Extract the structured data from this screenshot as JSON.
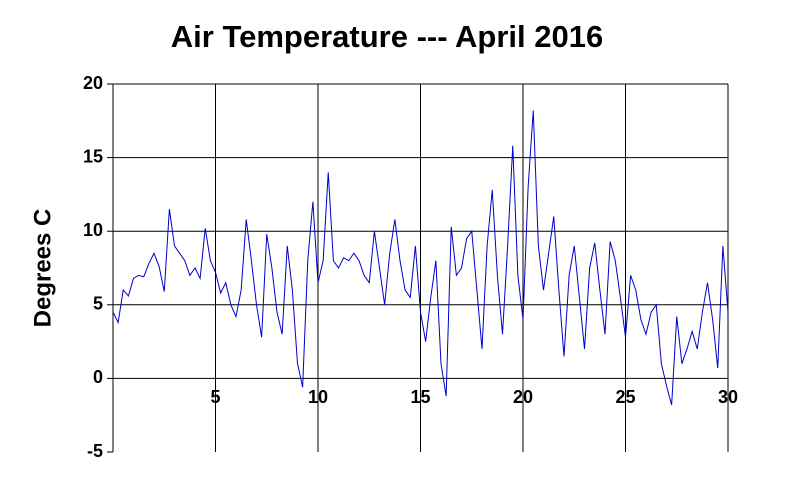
{
  "chart_data": {
    "type": "line",
    "title": "Air Temperature --- April 2016",
    "y_label": "Degrees C",
    "x": [
      0,
      0.25,
      0.5,
      0.75,
      1,
      1.25,
      1.5,
      1.75,
      2,
      2.25,
      2.5,
      2.75,
      3,
      3.25,
      3.5,
      3.75,
      4,
      4.25,
      4.5,
      4.75,
      5,
      5.25,
      5.5,
      5.75,
      6,
      6.25,
      6.5,
      6.75,
      7,
      7.25,
      7.5,
      7.75,
      8,
      8.25,
      8.5,
      8.75,
      9,
      9.25,
      9.5,
      9.75,
      10,
      10.25,
      10.5,
      10.75,
      11,
      11.25,
      11.5,
      11.75,
      12,
      12.25,
      12.5,
      12.75,
      13,
      13.25,
      13.5,
      13.75,
      14,
      14.25,
      14.5,
      14.75,
      15,
      15.25,
      15.5,
      15.75,
      16,
      16.25,
      16.5,
      16.75,
      17,
      17.25,
      17.5,
      17.75,
      18,
      18.25,
      18.5,
      18.75,
      19,
      19.25,
      19.5,
      19.75,
      20,
      20.25,
      20.5,
      20.75,
      21,
      21.25,
      21.5,
      21.75,
      22,
      22.25,
      22.5,
      22.75,
      23,
      23.25,
      23.5,
      23.75,
      24,
      24.25,
      24.5,
      24.75,
      25,
      25.25,
      25.5,
      25.75,
      26,
      26.25,
      26.5,
      26.75,
      27,
      27.25,
      27.5,
      27.75,
      28,
      28.25,
      28.5,
      28.75,
      29,
      29.25,
      29.5,
      29.75,
      30
    ],
    "series": [
      {
        "name": "Air Temperature",
        "color": "#0000cc",
        "values": [
          4.5,
          3.8,
          6.0,
          5.6,
          6.8,
          7.0,
          6.9,
          7.8,
          8.5,
          7.6,
          5.9,
          11.5,
          9.0,
          8.5,
          8.0,
          7.0,
          7.5,
          6.8,
          10.2,
          8.0,
          7.2,
          5.8,
          6.5,
          5.0,
          4.2,
          6.0,
          10.8,
          8.0,
          5.0,
          2.8,
          9.8,
          7.5,
          4.5,
          3.0,
          9.0,
          6.0,
          1.0,
          -0.6,
          8.0,
          12.0,
          6.5,
          8.0,
          14.0,
          8.0,
          7.5,
          8.2,
          8.0,
          8.5,
          8.0,
          7.0,
          6.5,
          10.0,
          7.5,
          5.0,
          8.5,
          10.8,
          8.0,
          6.0,
          5.5,
          9.0,
          4.5,
          2.5,
          5.5,
          8.0,
          1.0,
          -1.2,
          10.3,
          7.0,
          7.5,
          9.5,
          10.0,
          6.0,
          2.0,
          9.0,
          12.8,
          7.0,
          3.0,
          9.0,
          15.8,
          7.0,
          4.0,
          13.0,
          18.2,
          9.0,
          6.0,
          8.5,
          11.0,
          6.0,
          1.5,
          7.0,
          9.0,
          5.5,
          2.0,
          7.5,
          9.2,
          6.0,
          3.0,
          9.3,
          8.0,
          5.5,
          2.8,
          7.0,
          6.0,
          4.0,
          3.0,
          4.5,
          5.0,
          1.0,
          -0.5,
          -1.8,
          4.2,
          1.0,
          2.0,
          3.2,
          2.0,
          4.5,
          6.5,
          4.0,
          0.7,
          9.0,
          4.5
        ]
      }
    ],
    "xlim": [
      0,
      30
    ],
    "xticks": [
      5,
      10,
      15,
      20,
      25,
      30
    ],
    "ylim": [
      -5,
      20
    ],
    "yticks": [
      -5,
      0,
      5,
      10,
      15,
      20
    ],
    "grid": true
  }
}
